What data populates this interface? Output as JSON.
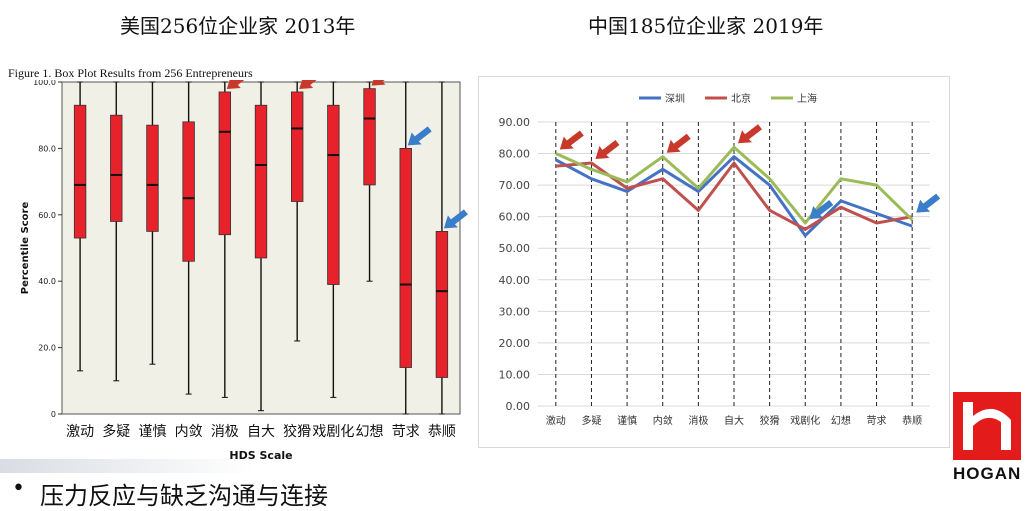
{
  "left_title": "美国256位企业家 2013年",
  "right_title": "中国185位企业家 2019年",
  "bullet": {
    "dot": "•",
    "text": "压力反应与缺乏沟通与连接"
  },
  "logo": {
    "text": "HOGAN",
    "colors": {
      "red": "#e31b1b",
      "black": "#111111"
    }
  },
  "arrow_colors": {
    "red": "#c8392b",
    "blue": "#3a7dc9"
  },
  "chart_data": [
    {
      "type": "box",
      "caption": "Figure 1. Box Plot Results from 256 Entrepreneurs",
      "xlabel": "HDS Scale",
      "ylabel": "Percentile Score",
      "ylim": [
        0,
        100
      ],
      "yticks": [
        "0",
        "20.0",
        "40.0",
        "60.0",
        "80.0",
        "100.0"
      ],
      "box_color": "#e8222a",
      "background": "#f0f0e6",
      "categories": [
        "激动",
        "多疑",
        "谨慎",
        "内敛",
        "消极",
        "自大",
        "狡猾",
        "戏剧化",
        "幻想",
        "苛求",
        "恭顺"
      ],
      "boxes": [
        {
          "min": 13,
          "q1": 53,
          "median": 69,
          "q3": 93,
          "max": 100
        },
        {
          "min": 10,
          "q1": 58,
          "median": 72,
          "q3": 90,
          "max": 100
        },
        {
          "min": 15,
          "q1": 55,
          "median": 69,
          "q3": 87,
          "max": 100
        },
        {
          "min": 6,
          "q1": 46,
          "median": 65,
          "q3": 88,
          "max": 100
        },
        {
          "min": 5,
          "q1": 54,
          "median": 85,
          "q3": 97,
          "max": 100
        },
        {
          "min": 1,
          "q1": 47,
          "median": 75,
          "q3": 93,
          "max": 100
        },
        {
          "min": 22,
          "q1": 64,
          "median": 86,
          "q3": 97,
          "max": 100
        },
        {
          "min": 5,
          "q1": 39,
          "median": 78,
          "q3": 93,
          "max": 100
        },
        {
          "min": 40,
          "q1": 69,
          "median": 89,
          "q3": 98,
          "max": 100
        },
        {
          "min": 0,
          "q1": 14,
          "median": 39,
          "q3": 80,
          "max": 100
        },
        {
          "min": 0,
          "q1": 11,
          "median": 37,
          "q3": 55,
          "max": 100
        }
      ],
      "arrows": [
        {
          "category": "消极",
          "color": "red"
        },
        {
          "category": "狡猾",
          "color": "red"
        },
        {
          "category": "幻想",
          "color": "red"
        },
        {
          "category": "苛求",
          "color": "blue"
        },
        {
          "category": "恭顺",
          "color": "blue"
        }
      ]
    },
    {
      "type": "line",
      "categories": [
        "激动",
        "多疑",
        "谨慎",
        "内敛",
        "消极",
        "自大",
        "狡猾",
        "戏剧化",
        "幻想",
        "苛求",
        "恭顺"
      ],
      "ylim": [
        0,
        90
      ],
      "yticks": [
        "0.00",
        "10.00",
        "20.00",
        "30.00",
        "40.00",
        "50.00",
        "60.00",
        "70.00",
        "80.00",
        "90.00"
      ],
      "legend_position": "top",
      "series": [
        {
          "name": "深圳",
          "color": "#4472c4",
          "values": [
            78,
            72,
            68,
            75,
            68,
            79,
            70,
            54,
            65,
            61,
            57
          ]
        },
        {
          "name": "北京",
          "color": "#c0504d",
          "values": [
            76,
            77,
            69,
            72,
            62,
            77,
            62,
            56,
            63,
            58,
            60
          ]
        },
        {
          "name": "上海",
          "color": "#9bbb59",
          "values": [
            80,
            75,
            71,
            79,
            69,
            82,
            72,
            58,
            72,
            70,
            59
          ]
        }
      ],
      "arrows": [
        {
          "category": "激动",
          "color": "red"
        },
        {
          "category": "多疑",
          "color": "red"
        },
        {
          "category": "内敛",
          "color": "red"
        },
        {
          "category": "自大",
          "color": "red"
        },
        {
          "category": "戏剧化",
          "color": "blue"
        },
        {
          "category": "恭顺",
          "color": "blue"
        }
      ]
    }
  ]
}
